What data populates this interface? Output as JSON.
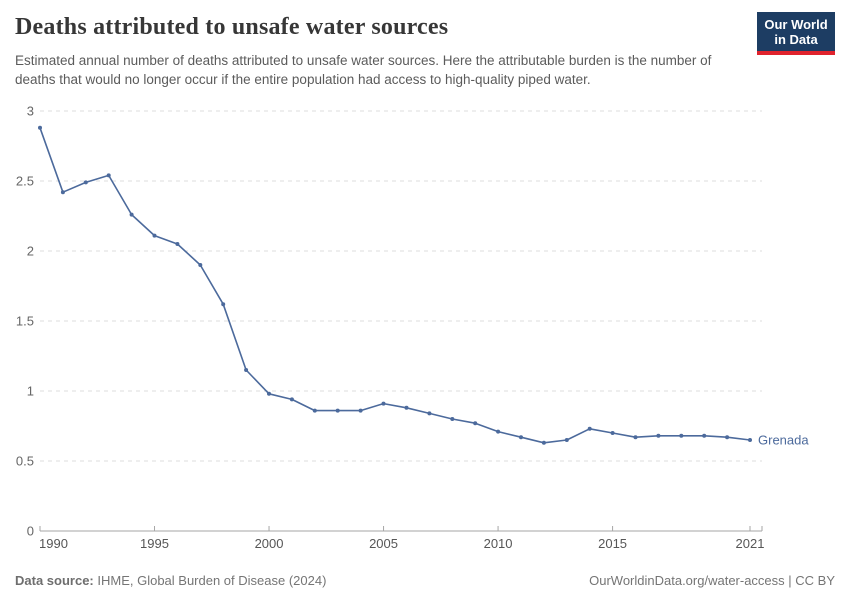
{
  "header": {
    "title": "Deaths attributed to unsafe water sources",
    "subtitle": "Estimated annual number of deaths attributed to unsafe water sources. Here the attributable burden is the number of deaths that would no longer occur if the entire population had access to high-quality piped water.",
    "logo": {
      "line1": "Our World",
      "line2": "in Data",
      "bg_color": "#1d3d63",
      "accent_color": "#e0232d"
    }
  },
  "chart_data": {
    "type": "line",
    "title": "Deaths attributed to unsafe water sources",
    "xlabel": "",
    "ylabel": "",
    "xlim": [
      1990,
      2021
    ],
    "ylim": [
      0,
      3
    ],
    "grid": "horizontal-dashed",
    "xticks": [
      1990,
      1995,
      2000,
      2005,
      2010,
      2015,
      2021
    ],
    "yticks": [
      0,
      0.5,
      1,
      1.5,
      2,
      2.5,
      3
    ],
    "series": [
      {
        "name": "Grenada",
        "color": "#4c6a9c",
        "x": [
          1990,
          1991,
          1992,
          1993,
          1994,
          1995,
          1996,
          1997,
          1998,
          1999,
          2000,
          2001,
          2002,
          2003,
          2004,
          2005,
          2006,
          2007,
          2008,
          2009,
          2010,
          2011,
          2012,
          2013,
          2014,
          2015,
          2016,
          2017,
          2018,
          2019,
          2020,
          2021
        ],
        "values": [
          2.88,
          2.42,
          2.49,
          2.54,
          2.26,
          2.11,
          2.05,
          1.9,
          1.62,
          1.15,
          0.98,
          0.94,
          0.86,
          0.86,
          0.86,
          0.91,
          0.88,
          0.84,
          0.8,
          0.77,
          0.71,
          0.67,
          0.63,
          0.65,
          0.73,
          0.7,
          0.67,
          0.68,
          0.68,
          0.68,
          0.67,
          0.65
        ]
      }
    ],
    "end_label": "Grenada",
    "legend_position": "end-of-line",
    "colors": {
      "gridline": "#dcdcdc",
      "axis_line": "#a6a6a6",
      "tick_label": "#666666"
    }
  },
  "footer": {
    "source_label": "Data source:",
    "source_value": " IHME, Global Burden of Disease (2024)",
    "attribution": "OurWorldinData.org/water-access | CC BY"
  }
}
